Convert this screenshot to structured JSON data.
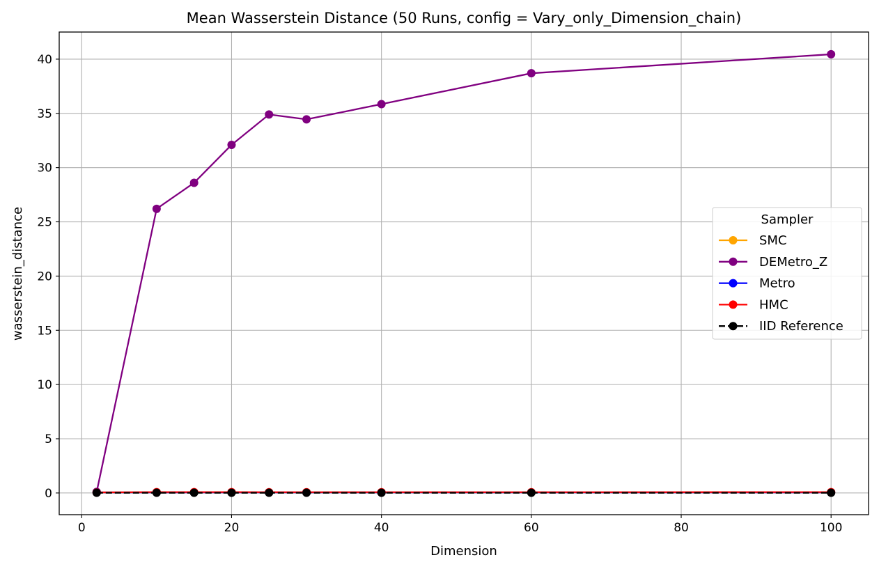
{
  "chart_data": {
    "type": "line",
    "title": "Mean Wasserstein Distance (50 Runs, config = Vary_only_Dimension_chain)",
    "xlabel": "Dimension",
    "ylabel": "wasserstein_distance",
    "x": [
      2,
      10,
      15,
      20,
      25,
      30,
      40,
      60,
      100
    ],
    "xlim": [
      -3,
      105
    ],
    "ylim": [
      -2,
      42.5
    ],
    "xticks": [
      0,
      20,
      40,
      60,
      80,
      100
    ],
    "yticks": [
      0,
      5,
      10,
      15,
      20,
      25,
      30,
      35,
      40
    ],
    "grid": true,
    "legend": {
      "title": "Sampler",
      "placement": "center-right"
    },
    "series": [
      {
        "name": "SMC",
        "color": "#ffa500",
        "style": "solid",
        "values": [
          0.05,
          0.05,
          0.05,
          0.05,
          0.05,
          0.05,
          0.05,
          0.05,
          0.05
        ]
      },
      {
        "name": "DEMetro_Z",
        "color": "#800080",
        "style": "solid",
        "values": [
          0.1,
          26.2,
          28.6,
          32.1,
          34.9,
          34.45,
          35.85,
          38.7,
          40.45
        ]
      },
      {
        "name": "Metro",
        "color": "#0000ff",
        "style": "solid",
        "values": [
          0.05,
          0.05,
          0.05,
          0.05,
          0.05,
          0.05,
          0.05,
          0.05,
          0.05
        ]
      },
      {
        "name": "HMC",
        "color": "#ff0000",
        "style": "solid",
        "values": [
          0.05,
          0.08,
          0.08,
          0.08,
          0.07,
          0.07,
          0.07,
          0.07,
          0.08
        ]
      },
      {
        "name": "IID Reference",
        "color": "#000000",
        "style": "dashed",
        "values": [
          0.02,
          0.02,
          0.02,
          0.02,
          0.02,
          0.02,
          0.02,
          0.02,
          0.02
        ]
      }
    ]
  }
}
